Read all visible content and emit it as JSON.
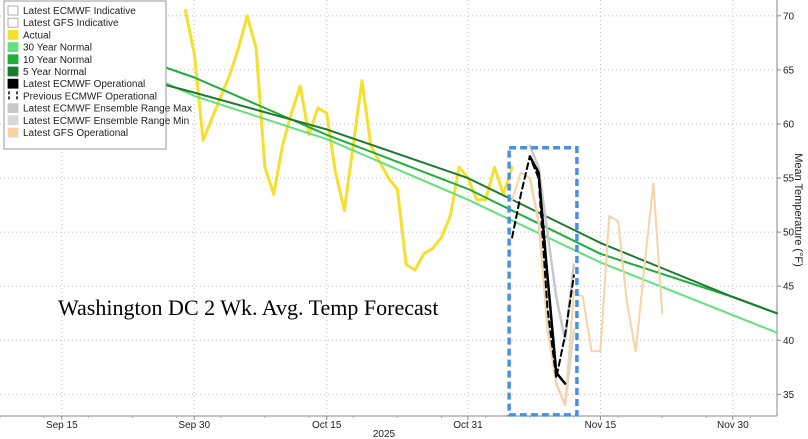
{
  "chart_data": {
    "type": "line",
    "annotation": "Washington DC 2 Wk. Avg. Temp Forecast",
    "ylabel": "Mean Temperature (°F)",
    "year_label": "2025",
    "xlim": [
      "2025-09-08",
      "2025-12-05"
    ],
    "ylim": [
      33,
      71
    ],
    "grid": true,
    "legend_position": "top-left",
    "x_ticks": [
      {
        "date": "2025-09-15",
        "label": "Sep 15"
      },
      {
        "date": "2025-09-30",
        "label": "Sep 30"
      },
      {
        "date": "2025-10-15",
        "label": "Oct 15"
      },
      {
        "date": "2025-10-31",
        "label": "Oct 31"
      },
      {
        "date": "2025-11-15",
        "label": "Nov 15"
      },
      {
        "date": "2025-11-30",
        "label": "Nov 30"
      }
    ],
    "y_ticks": [
      35,
      40,
      45,
      50,
      55,
      60,
      65,
      70
    ],
    "legend": [
      {
        "label": "Latest ECMWF Indicative",
        "color": "#ffffff",
        "style": "box"
      },
      {
        "label": "Latest GFS Indicative",
        "color": "#ffffff",
        "style": "box"
      },
      {
        "label": "Actual",
        "color": "#f5e02e",
        "style": "box"
      },
      {
        "label": "30 Year Normal",
        "color": "#63e27a",
        "style": "box"
      },
      {
        "label": "10 Year Normal",
        "color": "#1fae3a",
        "style": "box"
      },
      {
        "label": "5 Year Normal",
        "color": "#1e7a2e",
        "style": "box"
      },
      {
        "label": "Latest ECMWF Operational",
        "color": "#000000",
        "style": "box"
      },
      {
        "label": "Previous ECMWF Operational",
        "color": "#000000",
        "style": "dashed"
      },
      {
        "label": "Latest ECMWF Ensemble Range Max",
        "color": "#c8c8c8",
        "style": "box"
      },
      {
        "label": "Latest ECMWF Ensemble Range Min",
        "color": "#d8d8d8",
        "style": "box"
      },
      {
        "label": "Latest GFS Operational",
        "color": "#f7d3a6",
        "style": "box"
      }
    ],
    "series": [
      {
        "name": "Actual",
        "color": "#f5e02e",
        "points": [
          [
            "2025-09-29",
            70.5
          ],
          [
            "2025-09-30",
            66.5
          ],
          [
            "2025-10-01",
            58.5
          ],
          [
            "2025-10-02",
            60.5
          ],
          [
            "2025-10-03",
            62.5
          ],
          [
            "2025-10-04",
            64.5
          ],
          [
            "2025-10-05",
            67.0
          ],
          [
            "2025-10-06",
            70.0
          ],
          [
            "2025-10-07",
            67.0
          ],
          [
            "2025-10-08",
            56.0
          ],
          [
            "2025-10-09",
            53.5
          ],
          [
            "2025-10-10",
            58.0
          ],
          [
            "2025-10-11",
            61.0
          ],
          [
            "2025-10-12",
            63.5
          ],
          [
            "2025-10-13",
            59.0
          ],
          [
            "2025-10-14",
            61.5
          ],
          [
            "2025-10-15",
            61.0
          ],
          [
            "2025-10-16",
            55.5
          ],
          [
            "2025-10-17",
            52.0
          ],
          [
            "2025-10-18",
            58.0
          ],
          [
            "2025-10-19",
            64.0
          ],
          [
            "2025-10-20",
            58.0
          ],
          [
            "2025-10-21",
            56.5
          ],
          [
            "2025-10-22",
            55.0
          ],
          [
            "2025-10-23",
            54.0
          ],
          [
            "2025-10-24",
            47.0
          ],
          [
            "2025-10-25",
            46.5
          ],
          [
            "2025-10-26",
            48.0
          ],
          [
            "2025-10-27",
            48.5
          ],
          [
            "2025-10-28",
            49.5
          ],
          [
            "2025-10-29",
            51.5
          ],
          [
            "2025-10-30",
            56.0
          ],
          [
            "2025-10-31",
            55.0
          ],
          [
            "2025-11-01",
            53.0
          ],
          [
            "2025-11-02",
            53.0
          ],
          [
            "2025-11-03",
            56.0
          ],
          [
            "2025-11-04",
            53.5
          ],
          [
            "2025-11-05",
            56.0
          ]
        ]
      },
      {
        "name": "30 Year Normal",
        "color": "#63e27a",
        "points": [
          [
            "2025-09-24",
            64.8
          ],
          [
            "2025-09-30",
            62.6
          ],
          [
            "2025-10-15",
            58.6
          ],
          [
            "2025-10-31",
            53.0
          ],
          [
            "2025-11-15",
            47.2
          ],
          [
            "2025-12-05",
            40.7
          ]
        ]
      },
      {
        "name": "10 Year Normal",
        "color": "#1fae3a",
        "points": [
          [
            "2025-09-24",
            66.0
          ],
          [
            "2025-09-30",
            64.3
          ],
          [
            "2025-10-15",
            59.0
          ],
          [
            "2025-10-31",
            54.0
          ],
          [
            "2025-11-15",
            48.0
          ],
          [
            "2025-11-30",
            44.0
          ],
          [
            "2025-12-05",
            42.5
          ]
        ]
      },
      {
        "name": "5 Year Normal",
        "color": "#1e7a2e",
        "points": [
          [
            "2025-09-24",
            64.2
          ],
          [
            "2025-09-30",
            62.9
          ],
          [
            "2025-10-15",
            59.5
          ],
          [
            "2025-10-31",
            55.0
          ],
          [
            "2025-11-15",
            49.0
          ],
          [
            "2025-11-30",
            44.0
          ],
          [
            "2025-12-05",
            42.5
          ]
        ]
      },
      {
        "name": "Latest ECMWF Ensemble Range Max",
        "color": "#c8c8c8",
        "points": [
          [
            "2025-11-07",
            58.0
          ],
          [
            "2025-11-08",
            56.0
          ],
          [
            "2025-11-09",
            50.0
          ],
          [
            "2025-11-10",
            44.0
          ],
          [
            "2025-11-11",
            40.0
          ],
          [
            "2025-11-12",
            47.0
          ]
        ]
      },
      {
        "name": "Latest ECMWF Ensemble Range Min",
        "color": "#d8d8d8",
        "points": [
          [
            "2025-11-07",
            55.0
          ],
          [
            "2025-11-08",
            51.0
          ],
          [
            "2025-11-09",
            42.0
          ],
          [
            "2025-11-10",
            36.0
          ],
          [
            "2025-11-11",
            34.0
          ],
          [
            "2025-11-12",
            41.0
          ]
        ]
      },
      {
        "name": "Latest GFS Operational",
        "color": "#f7d3a6",
        "points": [
          [
            "2025-11-05",
            53.0
          ],
          [
            "2025-11-06",
            55.5
          ],
          [
            "2025-11-07",
            55.0
          ],
          [
            "2025-11-08",
            51.0
          ],
          [
            "2025-11-09",
            41.0
          ],
          [
            "2025-11-10",
            36.0
          ],
          [
            "2025-11-11",
            34.0
          ],
          [
            "2025-11-12",
            44.5
          ],
          [
            "2025-11-13",
            44.0
          ],
          [
            "2025-11-14",
            39.0
          ],
          [
            "2025-11-15",
            39.0
          ],
          [
            "2025-11-16",
            51.5
          ],
          [
            "2025-11-17",
            51.0
          ],
          [
            "2025-11-18",
            43.5
          ],
          [
            "2025-11-19",
            39.0
          ],
          [
            "2025-11-20",
            47.0
          ],
          [
            "2025-11-21",
            54.5
          ],
          [
            "2025-11-22",
            42.5
          ]
        ]
      },
      {
        "name": "Latest ECMWF Operational",
        "color": "#000000",
        "points": [
          [
            "2025-11-07",
            57.0
          ],
          [
            "2025-11-08",
            55.5
          ],
          [
            "2025-11-09",
            46.0
          ],
          [
            "2025-11-10",
            37.0
          ],
          [
            "2025-11-11",
            36.0
          ]
        ]
      },
      {
        "name": "Previous ECMWF Operational",
        "color": "#000000",
        "dashed": true,
        "points": [
          [
            "2025-11-05",
            49.5
          ],
          [
            "2025-11-06",
            53.5
          ],
          [
            "2025-11-07",
            57.0
          ],
          [
            "2025-11-08",
            55.0
          ],
          [
            "2025-11-09",
            43.0
          ],
          [
            "2025-11-10",
            36.5
          ],
          [
            "2025-11-11",
            40.5
          ],
          [
            "2025-11-12",
            46.0
          ]
        ]
      }
    ],
    "highlight": {
      "x_range": [
        "2025-11-05",
        "2025-11-12"
      ],
      "y_range": [
        33.1,
        57.8
      ],
      "color": "#4a8fe0"
    }
  }
}
